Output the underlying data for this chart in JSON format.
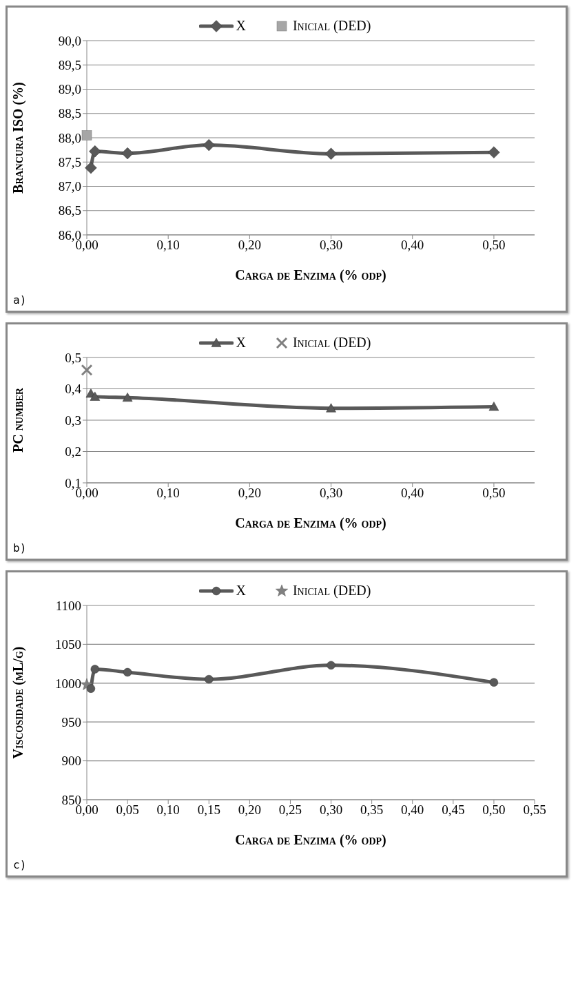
{
  "chart_data": [
    {
      "type": "line",
      "ylabel": "Brancura ISO (%)",
      "xlabel": "Carga de Enzima (% odp)",
      "annotations": [
        "a)"
      ],
      "legend": "top",
      "grid": "y",
      "xlim": [
        0,
        0.55
      ],
      "xticks": [
        {
          "value": 0,
          "label": "0,00"
        },
        {
          "value": 0.1,
          "label": "0,10"
        },
        {
          "value": 0.2,
          "label": "0,20"
        },
        {
          "value": 0.3,
          "label": "0,30"
        },
        {
          "value": 0.4,
          "label": "0,40"
        },
        {
          "value": 0.5,
          "label": "0,50"
        }
      ],
      "ylim": [
        86,
        90
      ],
      "yticks": [
        {
          "value": 86,
          "label": "86,0"
        },
        {
          "value": 86.5,
          "label": "86,5"
        },
        {
          "value": 87,
          "label": "87,0"
        },
        {
          "value": 87.5,
          "label": "87,5"
        },
        {
          "value": 88,
          "label": "88,0"
        },
        {
          "value": 88.5,
          "label": "88,5"
        },
        {
          "value": 89,
          "label": "89,0"
        },
        {
          "value": 89.5,
          "label": "89,5"
        },
        {
          "value": 90,
          "label": "90,0"
        }
      ],
      "series": [
        {
          "name": "X",
          "type": "line",
          "marker": "diamond",
          "color": "#595959",
          "x": [
            0.005,
            0.01,
            0.05,
            0.15,
            0.3,
            0.5
          ],
          "values": [
            87.38,
            87.72,
            87.68,
            87.85,
            87.67,
            87.7
          ]
        },
        {
          "name": "Inicial (DED)",
          "type": "scatter",
          "marker": "square",
          "color": "#a6a6a6",
          "x": [
            0
          ],
          "values": [
            88.05
          ]
        }
      ]
    },
    {
      "type": "line",
      "ylabel": "PC number",
      "xlabel": "Carga de Enzima (% odp)",
      "annotations": [
        "b)"
      ],
      "legend": "top",
      "grid": "y",
      "xlim": [
        0,
        0.55
      ],
      "xticks": [
        {
          "value": 0,
          "label": "0,00"
        },
        {
          "value": 0.1,
          "label": "0,10"
        },
        {
          "value": 0.2,
          "label": "0,20"
        },
        {
          "value": 0.3,
          "label": "0,30"
        },
        {
          "value": 0.4,
          "label": "0,40"
        },
        {
          "value": 0.5,
          "label": "0,50"
        }
      ],
      "ylim": [
        0.1,
        0.5
      ],
      "yticks": [
        {
          "value": 0.1,
          "label": "0,1"
        },
        {
          "value": 0.2,
          "label": "0,2"
        },
        {
          "value": 0.3,
          "label": "0,3"
        },
        {
          "value": 0.4,
          "label": "0,4"
        },
        {
          "value": 0.5,
          "label": "0,5"
        }
      ],
      "series": [
        {
          "name": "X",
          "type": "line",
          "marker": "triangle",
          "color": "#595959",
          "x": [
            0.005,
            0.01,
            0.05,
            0.3,
            0.5
          ],
          "values": [
            0.385,
            0.375,
            0.372,
            0.338,
            0.343
          ]
        },
        {
          "name": "Inicial (DED)",
          "type": "scatter",
          "marker": "cross",
          "color": "#7f7f7f",
          "x": [
            0
          ],
          "values": [
            0.46
          ]
        }
      ]
    },
    {
      "type": "line",
      "ylabel": "Viscosidade (mL/g)",
      "xlabel": "Carga de Enzima (% odp)",
      "annotations": [
        "c)"
      ],
      "legend": "top",
      "grid": "y",
      "xlim": [
        0,
        0.55
      ],
      "xticks": [
        {
          "value": 0,
          "label": "0,00"
        },
        {
          "value": 0.05,
          "label": "0,05"
        },
        {
          "value": 0.1,
          "label": "0,10"
        },
        {
          "value": 0.15,
          "label": "0,15"
        },
        {
          "value": 0.2,
          "label": "0,20"
        },
        {
          "value": 0.25,
          "label": "0,25"
        },
        {
          "value": 0.3,
          "label": "0,30"
        },
        {
          "value": 0.35,
          "label": "0,35"
        },
        {
          "value": 0.4,
          "label": "0,40"
        },
        {
          "value": 0.45,
          "label": "0,45"
        },
        {
          "value": 0.5,
          "label": "0,50"
        },
        {
          "value": 0.55,
          "label": "0,55"
        }
      ],
      "ylim": [
        850,
        1100
      ],
      "yticks": [
        850,
        900,
        950,
        1000,
        1050,
        1100
      ],
      "series": [
        {
          "name": "X",
          "type": "line",
          "marker": "circle",
          "color": "#595959",
          "x": [
            0.005,
            0.01,
            0.05,
            0.15,
            0.3,
            0.5
          ],
          "values": [
            993,
            1018,
            1014,
            1005,
            1023,
            1001
          ]
        },
        {
          "name": "Inicial (DED)",
          "type": "scatter",
          "marker": "star",
          "color": "#808080",
          "x": [
            0
          ],
          "values": [
            998
          ]
        }
      ]
    }
  ]
}
